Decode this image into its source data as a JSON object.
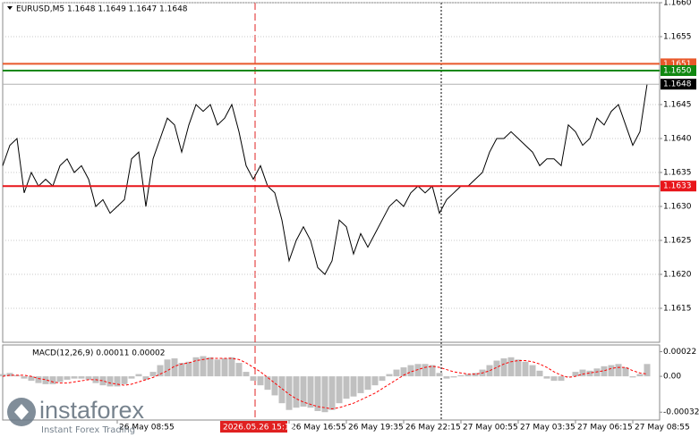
{
  "chart_data": [
    {
      "type": "line",
      "title": "EURUSD,M5  1.1648 1.1649 1.1647 1.1648",
      "categories": [
        null,
        null,
        null,
        null,
        null,
        null,
        null,
        null,
        null,
        null,
        null,
        null,
        null,
        null,
        null,
        null,
        "26 May 08:55",
        null,
        null,
        null,
        null,
        null,
        null,
        null,
        null,
        null,
        null,
        null,
        null,
        null,
        null,
        null,
        null,
        null,
        null,
        null,
        null,
        null,
        null,
        null,
        "26 May 16:55",
        null,
        null,
        null,
        null,
        null,
        null,
        null,
        "26 May 19:35",
        null,
        null,
        null,
        null,
        null,
        null,
        null,
        "26 May 22:15",
        null,
        null,
        null,
        null,
        null,
        null,
        null,
        "27 May 00:55",
        null,
        null,
        null,
        null,
        null,
        null,
        null,
        "27 May 03:35",
        null,
        null,
        null,
        null,
        null,
        null,
        null,
        "27 May 06:15",
        null,
        null,
        null,
        null,
        null,
        null,
        null,
        "27 May 08:55",
        null,
        null
      ],
      "values": [
        1.1636,
        1.1639,
        1.164,
        1.1632,
        1.1635,
        1.1633,
        1.1634,
        1.1633,
        1.1636,
        1.1637,
        1.1635,
        1.1636,
        1.1634,
        1.163,
        1.1631,
        1.1629,
        1.163,
        1.1631,
        1.1637,
        1.1638,
        1.163,
        1.1637,
        1.164,
        1.1643,
        1.1642,
        1.1638,
        1.1642,
        1.1645,
        1.1644,
        1.1645,
        1.1642,
        1.1643,
        1.1645,
        1.1641,
        1.1636,
        1.1634,
        1.1636,
        1.1633,
        1.1632,
        1.1628,
        1.1622,
        1.1625,
        1.1627,
        1.1625,
        1.1621,
        1.162,
        1.1622,
        1.1628,
        1.1627,
        1.1623,
        1.1626,
        1.1624,
        1.1626,
        1.1628,
        1.163,
        1.1631,
        1.163,
        1.1632,
        1.1633,
        1.1632,
        1.1633,
        1.1629,
        1.1631,
        1.1632,
        1.1633,
        1.1633,
        1.1634,
        1.1635,
        1.1638,
        1.164,
        1.164,
        1.1641,
        1.164,
        1.1639,
        1.1638,
        1.1636,
        1.1637,
        1.1637,
        1.1636,
        1.1642,
        1.1641,
        1.1639,
        1.164,
        1.1643,
        1.1642,
        1.1644,
        1.1645,
        1.1642,
        1.1639,
        1.1641,
        1.1648
      ],
      "color": "#000000",
      "ylim": [
        1.161,
        1.166
      ],
      "yticks": [
        {
          "value": 1.166,
          "label": "1.1660"
        },
        1.1655,
        {
          "value": 1.165,
          "label": "1.1650"
        },
        1.1645,
        {
          "value": 1.164,
          "label": "1.1640"
        },
        1.1635,
        {
          "value": 1.163,
          "label": "1.1630"
        },
        1.1625,
        {
          "value": 1.162,
          "label": "1.1620"
        },
        1.1615
      ],
      "grid": true,
      "levels": [
        {
          "value": 1.1651,
          "label": "1.1651",
          "color": "#e8582a"
        },
        {
          "value": 1.165,
          "label": "1.1650",
          "color": "#118811"
        },
        {
          "value": 1.1648,
          "label": "1.1648",
          "color": "#b0b0b0",
          "label_color": "#000000"
        },
        {
          "value": 1.1633,
          "label": "1.1633",
          "color": "#e8151a"
        }
      ],
      "crosshair_label": "2026.05.26 15:15"
    },
    {
      "type": "macd",
      "title": "MACD(12,26,9) 0.00011 0.00002",
      "values": [
        2e-05,
        3e-05,
        1e-05,
        -2e-05,
        -4e-05,
        -6e-05,
        -7e-05,
        -7e-05,
        -5e-05,
        -3e-05,
        -2e-05,
        -2e-05,
        -3e-05,
        -6e-05,
        -8e-05,
        -9e-05,
        -9e-05,
        -7e-05,
        -2e-05,
        2e-05,
        -3e-05,
        4e-05,
        0.0001,
        0.00015,
        0.00016,
        0.00012,
        0.00013,
        0.00017,
        0.00018,
        0.00017,
        0.00015,
        0.00016,
        0.00017,
        0.00012,
        4e-05,
        -4e-05,
        -8e-05,
        -0.00012,
        -0.00017,
        -0.00024,
        -0.0003,
        -0.00028,
        -0.00027,
        -0.00028,
        -0.00031,
        -0.00032,
        -0.0003,
        -0.00024,
        -0.0002,
        -0.00018,
        -0.00015,
        -0.00012,
        -8e-05,
        -4e-05,
        2e-05,
        6e-05,
        8e-05,
        0.0001,
        0.00011,
        0.00011,
        0.0001,
        3e-05,
        -2e-05,
        -1e-05,
        1e-05,
        2e-05,
        3e-05,
        6e-05,
        0.0001,
        0.00014,
        0.00016,
        0.00017,
        0.00015,
        0.00013,
        0.0001,
        5e-05,
        -2e-05,
        -4e-05,
        -4e-05,
        0,
        4e-05,
        6e-05,
        5e-05,
        7e-05,
        9e-05,
        0.0001,
        0.00011,
        8e-05,
        -1e-05,
        2e-05,
        0.00011
      ],
      "color": "#c0c0c0",
      "signal": [
        0,
        1e-05,
        1e-05,
        1e-05,
        0,
        -2e-05,
        -3e-05,
        -5e-05,
        -6e-05,
        -6e-05,
        -5e-05,
        -4e-05,
        -3e-05,
        -3e-05,
        -4e-05,
        -6e-05,
        -7e-05,
        -8e-05,
        -7e-05,
        -5e-05,
        -3e-05,
        -1e-05,
        2e-05,
        5e-05,
        9e-05,
        0.00011,
        0.00012,
        0.00014,
        0.00015,
        0.00016,
        0.00016,
        0.00016,
        0.00016,
        0.00015,
        0.00012,
        8e-05,
        4e-05,
        -1e-05,
        -6e-05,
        -0.00011,
        -0.00016,
        -0.0002,
        -0.00023,
        -0.00025,
        -0.00027,
        -0.00028,
        -0.00029,
        -0.00028,
        -0.00026,
        -0.00024,
        -0.00021,
        -0.00018,
        -0.00015,
        -0.00011,
        -7e-05,
        -3e-05,
        1e-05,
        4e-05,
        6e-05,
        8e-05,
        9e-05,
        8e-05,
        6e-05,
        4e-05,
        3e-05,
        2e-05,
        2e-05,
        3e-05,
        5e-05,
        8e-05,
        0.00011,
        0.00013,
        0.00014,
        0.00014,
        0.00013,
        0.00011,
        8e-05,
        4e-05,
        1e-05,
        -1e-05,
        0,
        2e-05,
        3e-05,
        4e-05,
        5e-05,
        7e-05,
        8e-05,
        8e-05,
        5e-05,
        3e-05,
        2e-05
      ],
      "signal_color": "#ff0000",
      "ylim": [
        -0.00039,
        0.00028
      ],
      "yticks": [
        0.00022,
        {
          "value": 0,
          "label": "0.00"
        },
        -0.00032
      ]
    }
  ],
  "watermark": {
    "brand": "instaforex",
    "tagline": "Instant Forex Trading"
  }
}
